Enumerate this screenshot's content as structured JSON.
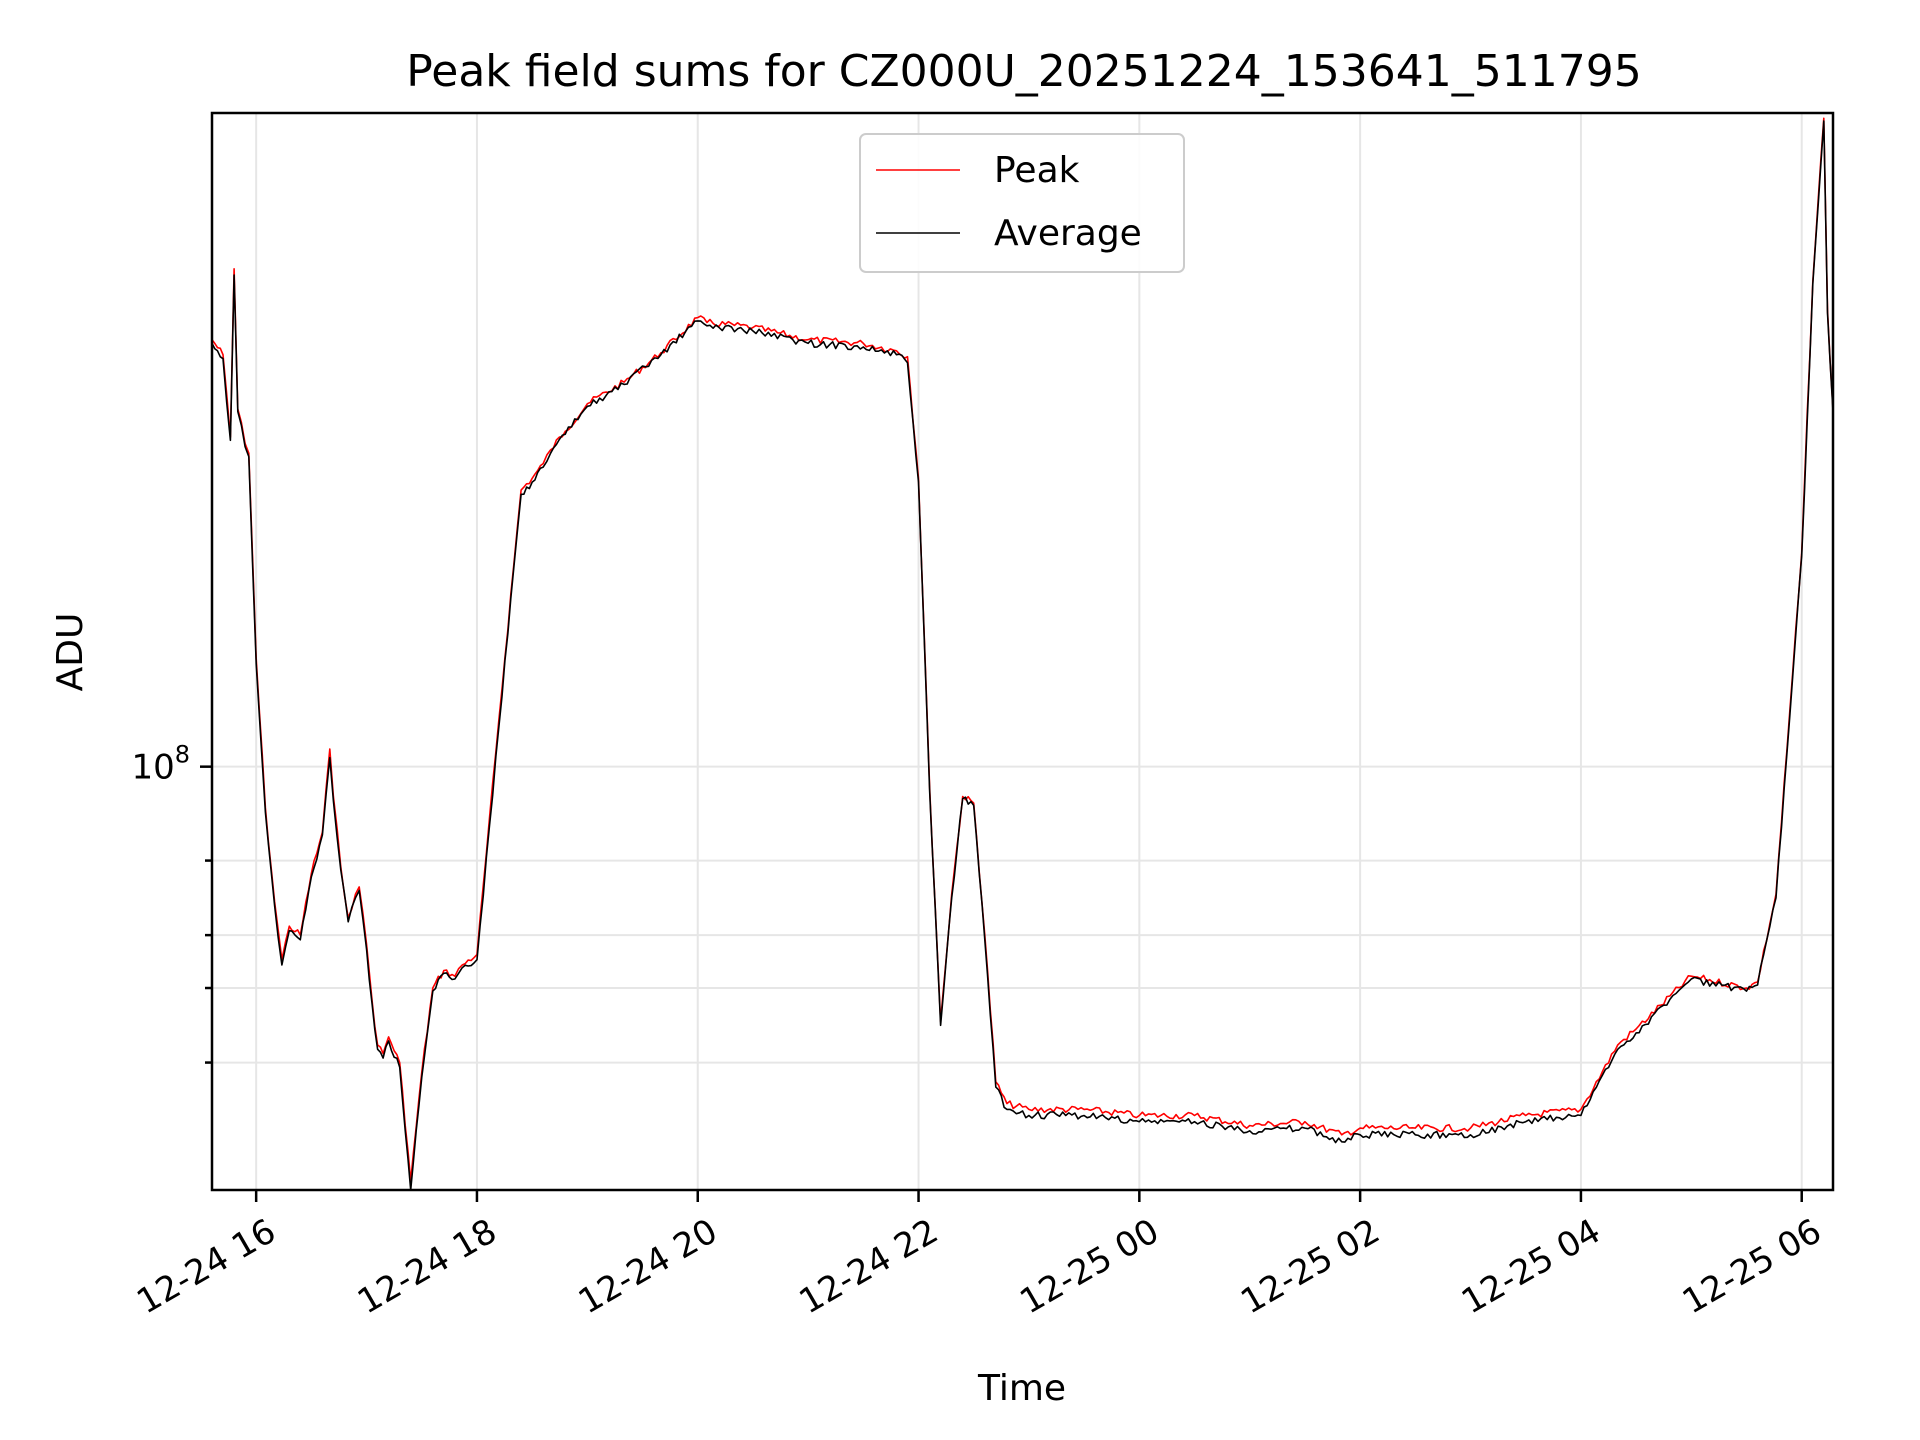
{
  "chart_data": {
    "type": "line",
    "title": "Peak field sums for CZ000U_20251224_153641_511795",
    "xlabel": "Time",
    "ylabel": "ADU",
    "yscale": "log",
    "xlim": [
      "2025-12-24 15:36",
      "2025-12-25 06:17"
    ],
    "ylim": [
      10000000,
      3500000000
    ],
    "x_ticks": [
      {
        "value": "2025-12-24 16:00",
        "label": "12-24 16"
      },
      {
        "value": "2025-12-24 18:00",
        "label": "12-24 18"
      },
      {
        "value": "2025-12-24 20:00",
        "label": "12-24 20"
      },
      {
        "value": "2025-12-24 22:00",
        "label": "12-24 22"
      },
      {
        "value": "2025-12-25 00:00",
        "label": "12-25 00"
      },
      {
        "value": "2025-12-25 02:00",
        "label": "12-25 02"
      },
      {
        "value": "2025-12-25 04:00",
        "label": "12-25 04"
      },
      {
        "value": "2025-12-25 06:00",
        "label": "12-25 06"
      }
    ],
    "y_ticks": [
      {
        "value": 100000000,
        "base": "10",
        "exp": "8"
      }
    ],
    "y_minor_ticks": [
      20000000,
      30000000,
      40000000,
      60000000
    ],
    "grid": true,
    "legend_position": "top-center",
    "x": [
      "2025-12-24 15:36",
      "2025-12-24 15:42",
      "2025-12-24 15:46",
      "2025-12-24 15:48",
      "2025-12-24 15:50",
      "2025-12-24 15:52",
      "2025-12-24 15:54",
      "2025-12-24 15:56",
      "2025-12-24 16:00",
      "2025-12-24 16:05",
      "2025-12-24 16:10",
      "2025-12-24 16:14",
      "2025-12-24 16:18",
      "2025-12-24 16:24",
      "2025-12-24 16:30",
      "2025-12-24 16:36",
      "2025-12-24 16:40",
      "2025-12-24 16:42",
      "2025-12-24 16:46",
      "2025-12-24 16:50",
      "2025-12-24 16:54",
      "2025-12-24 16:56",
      "2025-12-24 17:00",
      "2025-12-24 17:03",
      "2025-12-24 17:06",
      "2025-12-24 17:09",
      "2025-12-24 17:12",
      "2025-12-24 17:18",
      "2025-12-24 17:24",
      "2025-12-24 17:30",
      "2025-12-24 17:36",
      "2025-12-24 17:42",
      "2025-12-24 17:48",
      "2025-12-24 17:52",
      "2025-12-24 18:00",
      "2025-12-24 18:12",
      "2025-12-24 18:20",
      "2025-12-24 18:24",
      "2025-12-24 18:30",
      "2025-12-24 18:36",
      "2025-12-24 18:40",
      "2025-12-24 18:48",
      "2025-12-24 19:00",
      "2025-12-24 19:20",
      "2025-12-24 19:40",
      "2025-12-24 20:00",
      "2025-12-24 20:05",
      "2025-12-24 20:30",
      "2025-12-24 21:00",
      "2025-12-24 21:30",
      "2025-12-24 21:48",
      "2025-12-24 21:54",
      "2025-12-24 22:00",
      "2025-12-24 22:06",
      "2025-12-24 22:12",
      "2025-12-24 22:18",
      "2025-12-24 22:24",
      "2025-12-24 22:30",
      "2025-12-24 22:36",
      "2025-12-24 22:42",
      "2025-12-24 22:48",
      "2025-12-24 23:00",
      "2025-12-24 23:30",
      "2025-12-25 00:00",
      "2025-12-25 00:30",
      "2025-12-25 01:00",
      "2025-12-25 01:30",
      "2025-12-25 01:50",
      "2025-12-25 02:00",
      "2025-12-25 02:30",
      "2025-12-25 03:00",
      "2025-12-25 03:30",
      "2025-12-25 04:00",
      "2025-12-25 04:20",
      "2025-12-25 04:30",
      "2025-12-25 05:00",
      "2025-12-25 05:30",
      "2025-12-25 05:36",
      "2025-12-25 05:46",
      "2025-12-25 05:52",
      "2025-12-25 06:00",
      "2025-12-25 06:06",
      "2025-12-25 06:12",
      "2025-12-25 06:14",
      "2025-12-25 06:17"
    ],
    "series": [
      {
        "name": "Peak",
        "color": "#ff0000",
        "values": [
          1020000000,
          940000000,
          600000000,
          1500000000,
          700000000,
          650000000,
          580000000,
          550000000,
          180000000,
          80000000,
          48000000,
          35000000,
          42000000,
          40000000,
          56000000,
          70000000,
          110000000,
          85000000,
          58000000,
          44000000,
          50000000,
          52000000,
          38000000,
          28000000,
          22000000,
          21000000,
          23000000,
          20000000,
          10500000,
          19000000,
          30000000,
          33000000,
          32000000,
          34000000,
          36000000,
          130000000,
          300000000,
          450000000,
          480000000,
          520000000,
          560000000,
          620000000,
          720000000,
          810000000,
          950000000,
          1150000000,
          1120000000,
          1090000000,
          1020000000,
          1000000000,
          960000000,
          930000000,
          480000000,
          90000000,
          25000000,
          50000000,
          85000000,
          82000000,
          40000000,
          18000000,
          16000000,
          15500000,
          15500000,
          15000000,
          15000000,
          14200000,
          14500000,
          13500000,
          14000000,
          14000000,
          14000000,
          15000000,
          15500000,
          22000000,
          24000000,
          32000000,
          30000000,
          31000000,
          50000000,
          110000000,
          320000000,
          1400000000,
          3400000000,
          1200000000,
          700000000
        ]
      },
      {
        "name": "Average",
        "color": "#000000",
        "values": [
          1000000000,
          920000000,
          590000000,
          1450000000,
          690000000,
          640000000,
          570000000,
          540000000,
          175000000,
          78000000,
          47000000,
          34000000,
          41000000,
          39000000,
          55000000,
          69000000,
          105000000,
          83000000,
          57000000,
          43000000,
          49000000,
          51000000,
          37000000,
          27500000,
          21500000,
          20500000,
          22500000,
          19500000,
          10000000,
          18500000,
          29500000,
          32500000,
          31500000,
          33500000,
          35000000,
          125000000,
          295000000,
          440000000,
          470000000,
          510000000,
          550000000,
          610000000,
          710000000,
          800000000,
          940000000,
          1130000000,
          1100000000,
          1070000000,
          1000000000,
          980000000,
          940000000,
          900000000,
          470000000,
          88000000,
          24500000,
          49000000,
          84000000,
          81000000,
          39000000,
          17500000,
          15500000,
          15000000,
          15000000,
          14500000,
          14500000,
          13800000,
          14000000,
          13000000,
          13500000,
          13500000,
          13500000,
          14500000,
          15000000,
          21500000,
          23500000,
          31500000,
          29500000,
          30500000,
          49000000,
          108000000,
          315000000,
          1380000000,
          3350000000,
          1180000000,
          690000000
        ]
      }
    ]
  }
}
